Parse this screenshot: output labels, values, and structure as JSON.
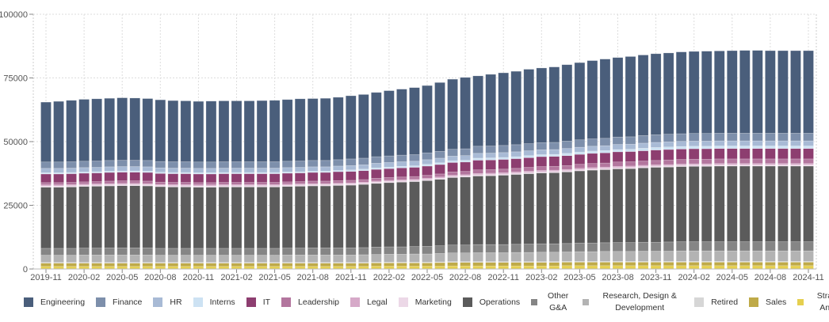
{
  "chart_data": {
    "type": "bar",
    "stacked": true,
    "title": "",
    "xlabel": "",
    "ylabel": "",
    "ylim": [
      0,
      100000
    ],
    "yticks": [
      "0",
      "25000",
      "50000",
      "75000",
      "100000"
    ],
    "grid": true,
    "legend_position": "bottom",
    "categories": [
      "2019-11",
      "2019-12",
      "2020-01",
      "2020-02",
      "2020-03",
      "2020-04",
      "2020-05",
      "2020-06",
      "2020-07",
      "2020-08",
      "2020-09",
      "2020-10",
      "2020-11",
      "2020-12",
      "2021-01",
      "2021-02",
      "2021-03",
      "2021-04",
      "2021-05",
      "2021-06",
      "2021-07",
      "2021-08",
      "2021-09",
      "2021-10",
      "2021-11",
      "2021-12",
      "2022-01",
      "2022-02",
      "2022-03",
      "2022-04",
      "2022-05",
      "2022-06",
      "2022-07",
      "2022-08",
      "2022-09",
      "2022-10",
      "2022-11",
      "2022-12",
      "2023-01",
      "2023-02",
      "2023-03",
      "2023-04",
      "2023-05",
      "2023-06",
      "2023-07",
      "2023-08",
      "2023-09",
      "2023-10",
      "2023-11",
      "2023-12",
      "2024-01",
      "2024-02",
      "2024-03",
      "2024-04",
      "2024-05",
      "2024-06",
      "2024-07",
      "2024-08",
      "2024-09",
      "2024-10",
      "2024-11"
    ],
    "xtick_labels": [
      "2019-11",
      "2020-02",
      "2020-05",
      "2020-08",
      "2020-11",
      "2021-02",
      "2021-05",
      "2021-08",
      "2021-11",
      "2022-02",
      "2022-05",
      "2022-08",
      "2022-11",
      "2023-02",
      "2023-05",
      "2023-08",
      "2023-11",
      "2024-02",
      "2024-05",
      "2024-08",
      "2024-11"
    ],
    "stack_order": "bottom-to-top: Strategy & Analytics first, Engineering last",
    "series": [
      {
        "name": "Strategy & Analytics",
        "color": "#e5cf4f",
        "values": [
          1000,
          1000,
          1000,
          1000,
          1000,
          1000,
          1000,
          1000,
          1000,
          1000,
          1000,
          1000,
          1000,
          1000,
          1000,
          1000,
          1000,
          1000,
          1000,
          1000,
          1000,
          1000,
          1000,
          1000,
          1000,
          1000,
          1100,
          1100,
          1100,
          1100,
          1100,
          1100,
          1200,
          1200,
          1200,
          1200,
          1200,
          1200,
          1200,
          1200,
          1200,
          1300,
          1300,
          1300,
          1300,
          1300,
          1300,
          1300,
          1300,
          1300,
          1300,
          1300,
          1300,
          1300,
          1300,
          1300,
          1300,
          1300,
          1300,
          1300,
          1300
        ]
      },
      {
        "name": "Sales",
        "color": "#bfaa48",
        "values": [
          1300,
          1300,
          1300,
          1300,
          1300,
          1300,
          1300,
          1300,
          1300,
          1300,
          1300,
          1300,
          1300,
          1300,
          1300,
          1300,
          1300,
          1300,
          1300,
          1300,
          1300,
          1300,
          1300,
          1300,
          1300,
          1300,
          1300,
          1300,
          1300,
          1300,
          1300,
          1400,
          1400,
          1400,
          1400,
          1400,
          1400,
          1400,
          1400,
          1400,
          1400,
          1400,
          1400,
          1400,
          1400,
          1400,
          1400,
          1400,
          1400,
          1400,
          1400,
          1400,
          1400,
          1400,
          1400,
          1400,
          1400,
          1400,
          1400,
          1400,
          1400
        ]
      },
      {
        "name": "Retired",
        "color": "#d6d6d6",
        "values": [
          300,
          300,
          300,
          300,
          300,
          300,
          300,
          300,
          300,
          300,
          300,
          300,
          300,
          300,
          300,
          300,
          300,
          300,
          300,
          300,
          300,
          300,
          300,
          300,
          300,
          300,
          300,
          300,
          300,
          300,
          300,
          300,
          300,
          300,
          300,
          300,
          300,
          300,
          300,
          300,
          300,
          300,
          300,
          300,
          300,
          300,
          300,
          300,
          300,
          300,
          300,
          300,
          300,
          300,
          300,
          300,
          300,
          300,
          300,
          300,
          300
        ]
      },
      {
        "name": "Research, Design & Development",
        "color": "#b3b3b3",
        "values": [
          2800,
          2800,
          2800,
          2900,
          2900,
          2900,
          2900,
          2900,
          2900,
          2800,
          2800,
          2800,
          2800,
          2800,
          2800,
          2800,
          2800,
          2800,
          2800,
          2900,
          2900,
          2900,
          2900,
          2900,
          2900,
          3000,
          3000,
          3100,
          3100,
          3200,
          3200,
          3300,
          3400,
          3400,
          3500,
          3500,
          3500,
          3600,
          3600,
          3700,
          3700,
          3700,
          3800,
          3800,
          3900,
          3900,
          3900,
          4000,
          4000,
          4000,
          4100,
          4100,
          4100,
          4100,
          4100,
          4100,
          4100,
          4100,
          4100,
          4100,
          4100
        ]
      },
      {
        "name": "Other G&A",
        "color": "#858585",
        "values": [
          2700,
          2700,
          2700,
          2700,
          2700,
          2800,
          2800,
          2800,
          2800,
          2700,
          2700,
          2700,
          2700,
          2700,
          2700,
          2700,
          2700,
          2700,
          2700,
          2700,
          2700,
          2800,
          2800,
          2800,
          2800,
          2800,
          2900,
          2900,
          2900,
          2900,
          3000,
          3000,
          3100,
          3100,
          3200,
          3200,
          3200,
          3200,
          3300,
          3300,
          3300,
          3300,
          3400,
          3400,
          3400,
          3500,
          3500,
          3500,
          3500,
          3600,
          3600,
          3600,
          3600,
          3600,
          3600,
          3600,
          3600,
          3600,
          3600,
          3600,
          3600
        ]
      },
      {
        "name": "Operations",
        "color": "#5b5b5b",
        "values": [
          24000,
          24000,
          24100,
          24200,
          24300,
          24300,
          24400,
          24400,
          24300,
          24200,
          24100,
          24100,
          24000,
          24000,
          24100,
          24100,
          24100,
          24100,
          24100,
          24200,
          24300,
          24300,
          24300,
          24500,
          24600,
          24800,
          25000,
          25200,
          25400,
          25500,
          25800,
          26100,
          26500,
          26700,
          26900,
          27000,
          27200,
          27400,
          27600,
          27800,
          27900,
          28100,
          28300,
          28600,
          28700,
          28900,
          29000,
          29200,
          29400,
          29400,
          29500,
          29600,
          29600,
          29700,
          29700,
          29700,
          29700,
          29700,
          29700,
          29700,
          29700
        ]
      },
      {
        "name": "Marketing",
        "color": "#ecd8e7",
        "values": [
          500,
          500,
          500,
          500,
          500,
          500,
          500,
          500,
          500,
          500,
          500,
          500,
          500,
          500,
          500,
          500,
          500,
          500,
          500,
          500,
          500,
          500,
          500,
          500,
          500,
          500,
          500,
          500,
          500,
          500,
          500,
          500,
          500,
          500,
          500,
          500,
          500,
          500,
          500,
          500,
          500,
          500,
          500,
          500,
          500,
          500,
          500,
          500,
          500,
          500,
          500,
          500,
          500,
          500,
          500,
          500,
          500,
          500,
          500,
          500,
          500
        ]
      },
      {
        "name": "Legal",
        "color": "#d6a9c8",
        "values": [
          400,
          400,
          400,
          400,
          400,
          400,
          400,
          400,
          400,
          400,
          400,
          400,
          400,
          400,
          400,
          400,
          400,
          400,
          400,
          400,
          400,
          400,
          400,
          400,
          400,
          400,
          400,
          400,
          400,
          400,
          400,
          400,
          400,
          400,
          500,
          500,
          500,
          500,
          500,
          500,
          500,
          500,
          500,
          500,
          500,
          500,
          500,
          500,
          500,
          500,
          500,
          500,
          500,
          500,
          500,
          500,
          500,
          500,
          500,
          500,
          500
        ]
      },
      {
        "name": "Leadership",
        "color": "#b3769e",
        "values": [
          900,
          900,
          900,
          900,
          900,
          1000,
          1000,
          1000,
          1000,
          900,
          900,
          900,
          900,
          900,
          900,
          900,
          900,
          900,
          900,
          900,
          900,
          1000,
          1000,
          1000,
          1000,
          1000,
          1100,
          1100,
          1100,
          1100,
          1200,
          1200,
          1300,
          1300,
          1400,
          1400,
          1400,
          1400,
          1500,
          1500,
          1500,
          1500,
          1600,
          1600,
          1600,
          1700,
          1700,
          1700,
          1700,
          1800,
          1800,
          1800,
          1800,
          1800,
          1800,
          1800,
          1800,
          1800,
          1800,
          1800,
          1800
        ]
      },
      {
        "name": "IT",
        "color": "#8d3e70",
        "values": [
          3400,
          3400,
          3400,
          3400,
          3400,
          3400,
          3400,
          3400,
          3400,
          3400,
          3400,
          3400,
          3400,
          3400,
          3400,
          3400,
          3400,
          3400,
          3400,
          3400,
          3400,
          3400,
          3400,
          3500,
          3500,
          3500,
          3500,
          3500,
          3600,
          3600,
          3600,
          3700,
          3700,
          3700,
          3800,
          3800,
          3800,
          3800,
          3800,
          3900,
          3900,
          3900,
          3900,
          4000,
          4000,
          4000,
          4000,
          4000,
          4100,
          4100,
          4100,
          4100,
          4100,
          4100,
          4100,
          4100,
          4100,
          4100,
          4100,
          4100,
          4100
        ]
      },
      {
        "name": "Interns",
        "color": "#cde2f3",
        "values": [
          500,
          500,
          500,
          500,
          500,
          500,
          500,
          500,
          500,
          500,
          500,
          500,
          500,
          500,
          500,
          500,
          500,
          500,
          500,
          500,
          500,
          500,
          500,
          500,
          600,
          600,
          600,
          600,
          600,
          600,
          700,
          700,
          700,
          700,
          800,
          800,
          800,
          800,
          800,
          800,
          800,
          900,
          900,
          900,
          900,
          900,
          900,
          1000,
          1000,
          1000,
          1000,
          1000,
          1000,
          1000,
          1000,
          1000,
          1000,
          1000,
          1000,
          1000,
          1000
        ]
      },
      {
        "name": "HR",
        "color": "#a8bad5",
        "values": [
          1700,
          1700,
          1700,
          1700,
          1700,
          1700,
          1700,
          1700,
          1700,
          1700,
          1700,
          1700,
          1700,
          1700,
          1700,
          1700,
          1700,
          1700,
          1700,
          1700,
          1700,
          1700,
          1700,
          1700,
          1700,
          1700,
          1800,
          1800,
          1800,
          1800,
          1800,
          1800,
          1800,
          1800,
          1900,
          1900,
          1900,
          1900,
          1900,
          1900,
          1900,
          1900,
          1900,
          1900,
          1900,
          2000,
          2000,
          2000,
          2000,
          2000,
          2000,
          2000,
          2000,
          2000,
          2000,
          2000,
          2000,
          2000,
          2000,
          2000,
          2000
        ]
      },
      {
        "name": "Finance",
        "color": "#7d8fab",
        "values": [
          2500,
          2500,
          2500,
          2500,
          2500,
          2500,
          2500,
          2500,
          2500,
          2500,
          2500,
          2500,
          2500,
          2500,
          2500,
          2500,
          2500,
          2500,
          2500,
          2500,
          2500,
          2500,
          2500,
          2500,
          2600,
          2600,
          2600,
          2600,
          2600,
          2600,
          2700,
          2700,
          2700,
          2700,
          2800,
          2800,
          2800,
          2800,
          2800,
          2800,
          2800,
          2900,
          2900,
          2900,
          2900,
          2900,
          2900,
          3000,
          3000,
          3000,
          3000,
          3000,
          3000,
          3000,
          3000,
          3000,
          3000,
          3000,
          3000,
          3000,
          3000
        ]
      },
      {
        "name": "Engineering",
        "color": "#4a5e7b",
        "values": [
          23500,
          23800,
          24100,
          24300,
          24400,
          24400,
          24500,
          24400,
          24300,
          24200,
          24000,
          23900,
          23800,
          23900,
          23900,
          23900,
          23900,
          24000,
          24100,
          24200,
          24400,
          24300,
          24400,
          24500,
          24800,
          25000,
          25200,
          25600,
          25900,
          26300,
          26400,
          27000,
          27500,
          28000,
          27600,
          28100,
          28500,
          28800,
          29200,
          29300,
          29600,
          30000,
          30300,
          30700,
          31100,
          31200,
          31500,
          31600,
          31800,
          31900,
          32100,
          32200,
          32300,
          32300,
          32400,
          32500,
          32500,
          32400,
          32400,
          32400,
          32400
        ]
      }
    ]
  },
  "legend": [
    {
      "label": "Engineering",
      "color": "#4a5e7b"
    },
    {
      "label": "Finance",
      "color": "#7d8fab"
    },
    {
      "label": "HR",
      "color": "#a8bad5"
    },
    {
      "label": "Interns",
      "color": "#cde2f3"
    },
    {
      "label": "IT",
      "color": "#8d3e70"
    },
    {
      "label": "Leadership",
      "color": "#b3769e"
    },
    {
      "label": "Legal",
      "color": "#d6a9c8"
    },
    {
      "label": "Marketing",
      "color": "#ecd8e7"
    },
    {
      "label": "Operations",
      "color": "#5b5b5b"
    },
    {
      "label": "Other G&A",
      "color": "#858585"
    },
    {
      "label": "Research, Design & Development",
      "color": "#b3b3b3"
    },
    {
      "label": "Retired",
      "color": "#d6d6d6"
    },
    {
      "label": "Sales",
      "color": "#bfaa48"
    },
    {
      "label": "Strategy & Analytics",
      "color": "#e5cf4f"
    }
  ]
}
